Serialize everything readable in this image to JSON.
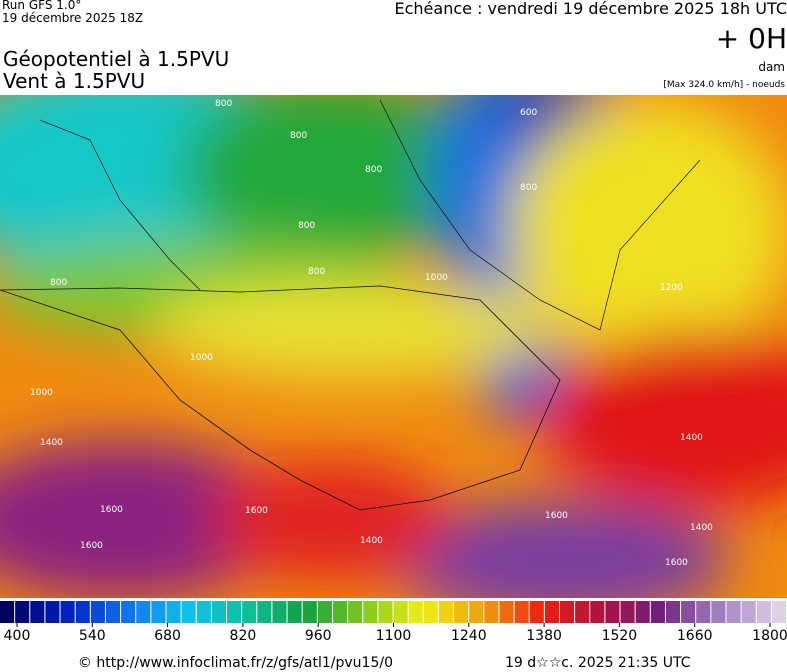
{
  "header": {
    "run": "Run GFS 1.0°",
    "run_date": "19 décembre 2025 18Z",
    "valid": "Echéance : vendredi 19 décembre 2025 18h UTC",
    "lead": "+ 0H",
    "unit": "dam",
    "max_wind": "[Max 324.0 km/h] - noeuds",
    "title1": "Géopotentiel à 1.5PVU",
    "title2": "Vent à 1.5PVU"
  },
  "contour_labels": [
    "800",
    "800",
    "800",
    "800",
    "800",
    "800",
    "600",
    "800",
    "1000",
    "1000",
    "1000",
    "1200",
    "1400",
    "1400",
    "1400",
    "1600",
    "1600",
    "1600",
    "1600",
    "1400",
    "1600"
  ],
  "colorbar": {
    "labels": [
      400,
      540,
      680,
      820,
      960,
      1100,
      1240,
      1380,
      1520,
      1660,
      1800
    ]
  },
  "footer": {
    "source": "© http://www.infoclimat.fr/z/gfs/atl1/pvu15/0",
    "generated": "19 d☆☆c. 2025 21:35 UTC"
  }
}
